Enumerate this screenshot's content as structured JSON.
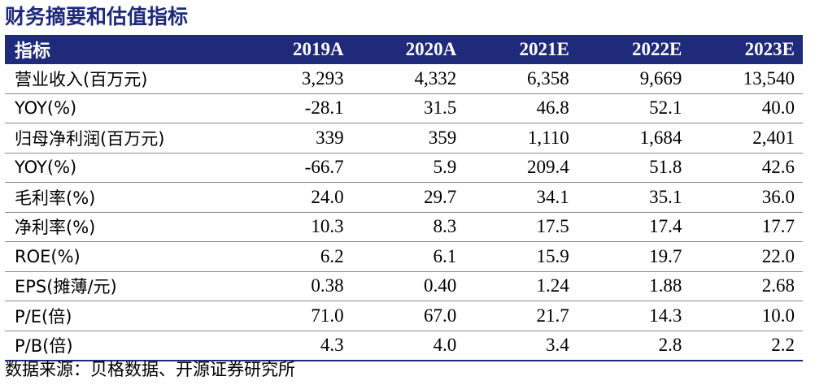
{
  "title": "财务摘要和估值指标",
  "table": {
    "headers": [
      "指标",
      "2019A",
      "2020A",
      "2021E",
      "2022E",
      "2023E"
    ],
    "rows": [
      [
        "营业收入(百万元)",
        "3,293",
        "4,332",
        "6,358",
        "9,669",
        "13,540"
      ],
      [
        "YOY(%)",
        "-28.1",
        "31.5",
        "46.8",
        "52.1",
        "40.0"
      ],
      [
        "归母净利润(百万元)",
        "339",
        "359",
        "1,110",
        "1,684",
        "2,401"
      ],
      [
        "YOY(%)",
        "-66.7",
        "5.9",
        "209.4",
        "51.8",
        "42.6"
      ],
      [
        "毛利率(%)",
        "24.0",
        "29.7",
        "34.1",
        "35.1",
        "36.0"
      ],
      [
        "净利率(%)",
        "10.3",
        "8.3",
        "17.5",
        "17.4",
        "17.7"
      ],
      [
        "ROE(%)",
        "6.2",
        "6.1",
        "15.9",
        "19.7",
        "22.0"
      ],
      [
        "EPS(摊薄/元)",
        "0.38",
        "0.40",
        "1.24",
        "1.88",
        "2.68"
      ],
      [
        "P/E(倍)",
        "71.0",
        "67.0",
        "21.7",
        "14.3",
        "10.0"
      ],
      [
        "P/B(倍)",
        "4.3",
        "4.0",
        "3.4",
        "2.8",
        "2.2"
      ]
    ]
  },
  "source": "数据来源：贝格数据、开源证券研究所"
}
